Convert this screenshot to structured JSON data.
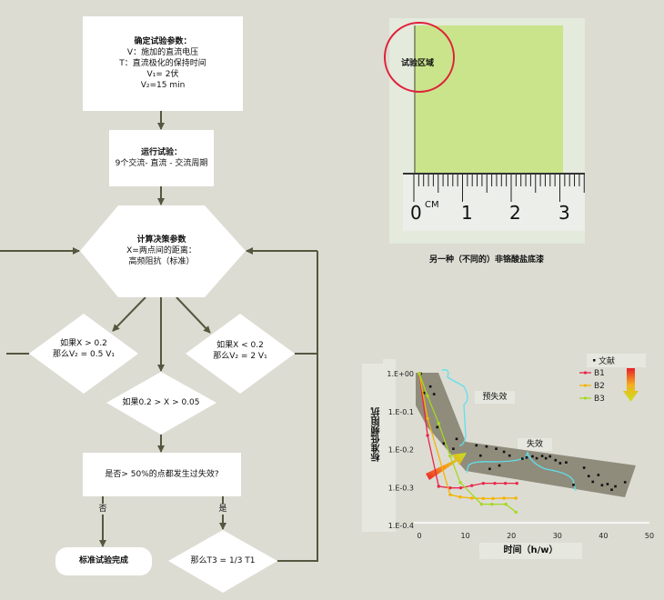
{
  "flowchart": {
    "define_params": {
      "title": "确定试验参数：",
      "line1": "V：施加的直流电压",
      "line2": "T：直流极化的保持时间",
      "line3": "V₁= 2伏",
      "line4": "V₂=15 min"
    },
    "run_test": {
      "title": "运行试验：",
      "line1": "9个交流- 直流 - 交流周期"
    },
    "calc": {
      "title": "计算决策参数",
      "line1": "X=两点间的距离：",
      "line2": "高频阻抗（标准）"
    },
    "left_decision": {
      "line1": "如果X > 0.2",
      "line2": "那么V₂ = 0.5 V₁"
    },
    "right_decision": {
      "line1": "如果X < 0.2",
      "line2": "那么V₂ = 2 V₁"
    },
    "middle_decision": {
      "line1": "如果0.2 > X > 0.05"
    },
    "failure_check": {
      "line1": "是否> 50%的点都发生过失效?"
    },
    "no_label": "否",
    "yes_label": "是",
    "complete": "标准试验完成",
    "t3_decision": "那么T3 = 1/3 T1",
    "colors": {
      "arrow": "#55573f",
      "box": "#ffffff",
      "background": "#dcdcd3"
    }
  },
  "photo": {
    "region_label": "试验区域",
    "ruler_unit": "CM",
    "ruler_numbers": [
      "0",
      "1",
      "2",
      "3"
    ],
    "caption": "另一种（不同的）非铬酸盐底漆",
    "colors": {
      "panel": "#c9e48a",
      "circle": "#e0203a"
    }
  },
  "chart_data": {
    "type": "line",
    "xlabel": "时间（h/w）",
    "ylabel": "标准低频阻抗",
    "xlim": [
      0,
      50
    ],
    "ylim": [
      -0.4,
      0
    ],
    "x_ticks": [
      "0",
      "10",
      "20",
      "30",
      "40",
      "50"
    ],
    "y_ticks": [
      "1.E+00",
      "1.E-0.1",
      "1.E-0.2",
      "1.E-0.3",
      "1.E-0.4"
    ],
    "legend_position": "top-right",
    "annotations": {
      "pre_failure": "预失效",
      "failure": "失效"
    },
    "series": [
      {
        "name": "文献",
        "style": "scatter",
        "color": "#111111",
        "points": [
          [
            0.3,
            0
          ],
          [
            1.0,
            -0.051
          ],
          [
            2.4,
            -0.034
          ],
          [
            3.2,
            -0.054
          ],
          [
            3.9,
            -0.141
          ],
          [
            5.3,
            -0.184
          ],
          [
            7.4,
            -0.198
          ],
          [
            8.1,
            -0.172
          ],
          [
            12.4,
            -0.189
          ],
          [
            13.3,
            -0.216
          ],
          [
            14.6,
            -0.192
          ],
          [
            15.3,
            -0.251
          ],
          [
            16.7,
            -0.198
          ],
          [
            17.4,
            -0.242
          ],
          [
            18.4,
            -0.206
          ],
          [
            19.6,
            -0.216
          ],
          [
            22.4,
            -0.224
          ],
          [
            23.3,
            -0.221
          ],
          [
            24.6,
            -0.218
          ],
          [
            25.5,
            -0.223
          ],
          [
            26.7,
            -0.217
          ],
          [
            27.5,
            -0.223
          ],
          [
            28.4,
            -0.218
          ],
          [
            29.6,
            -0.228
          ],
          [
            30.6,
            -0.236
          ],
          [
            31.9,
            -0.234
          ],
          [
            33.5,
            -0.293
          ],
          [
            35.8,
            -0.248
          ],
          [
            36.8,
            -0.27
          ],
          [
            37.7,
            -0.285
          ],
          [
            38.9,
            -0.267
          ],
          [
            39.7,
            -0.294
          ],
          [
            40.9,
            -0.291
          ],
          [
            41.8,
            -0.306
          ],
          [
            42.6,
            -0.297
          ],
          [
            44.7,
            -0.286
          ]
        ]
      },
      {
        "name": "B1",
        "style": "line",
        "color": "#e8264a",
        "points": [
          [
            0,
            0
          ],
          [
            1.8,
            -0.163
          ],
          [
            4.2,
            -0.297
          ],
          [
            6.7,
            -0.301
          ],
          [
            9.0,
            -0.301
          ],
          [
            11.4,
            -0.295
          ],
          [
            13.9,
            -0.289
          ],
          [
            16.4,
            -0.289
          ],
          [
            18.7,
            -0.289
          ],
          [
            21.2,
            -0.289
          ]
        ]
      },
      {
        "name": "B2",
        "style": "line",
        "color": "#f5b400",
        "points": [
          [
            0,
            0
          ],
          [
            1.8,
            -0.118
          ],
          [
            6.7,
            -0.319
          ],
          [
            8.9,
            -0.325
          ],
          [
            11.4,
            -0.328
          ],
          [
            13.9,
            -0.329
          ],
          [
            16.0,
            -0.329
          ],
          [
            18.4,
            -0.328
          ],
          [
            21.0,
            -0.328
          ]
        ]
      },
      {
        "name": "B3",
        "style": "line",
        "color": "#a6d81e",
        "points": [
          [
            0,
            0
          ],
          [
            1.8,
            -0.059
          ],
          [
            4.2,
            -0.131
          ],
          [
            6.7,
            -0.217
          ],
          [
            8.9,
            -0.287
          ],
          [
            13.5,
            -0.344
          ],
          [
            15.8,
            -0.344
          ],
          [
            18.8,
            -0.344
          ],
          [
            21.0,
            -0.365
          ]
        ]
      }
    ]
  }
}
